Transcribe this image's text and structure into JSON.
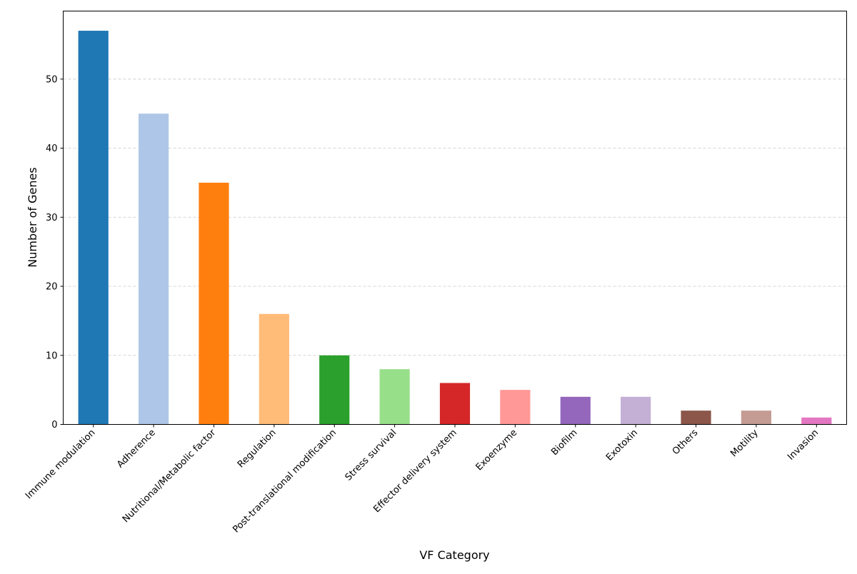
{
  "chart_data": {
    "type": "bar",
    "title": "",
    "xlabel": "VF Category",
    "ylabel": "Number of Genes",
    "categories": [
      "Immune modulation",
      "Adherence",
      "Nutritional/Metabolic factor",
      "Regulation",
      "Post-translational modification",
      "Stress survival",
      "Effector delivery system",
      "Exoenzyme",
      "Biofilm",
      "Exotoxin",
      "Others",
      "Motility",
      "Invasion"
    ],
    "values": [
      57,
      45,
      35,
      16,
      10,
      8,
      6,
      5,
      4,
      4,
      2,
      2,
      1
    ],
    "colors": [
      "#1f77b4",
      "#aec7e8",
      "#ff7f0e",
      "#ffbb78",
      "#2ca02c",
      "#98df8a",
      "#d62728",
      "#ff9896",
      "#9467bd",
      "#c5b0d5",
      "#8c564b",
      "#c49c94",
      "#e377c2"
    ],
    "ylim": [
      0,
      59.85
    ],
    "yticks": [
      0,
      10,
      20,
      30,
      40,
      50
    ],
    "grid": "y-dashed",
    "legend": "none"
  }
}
